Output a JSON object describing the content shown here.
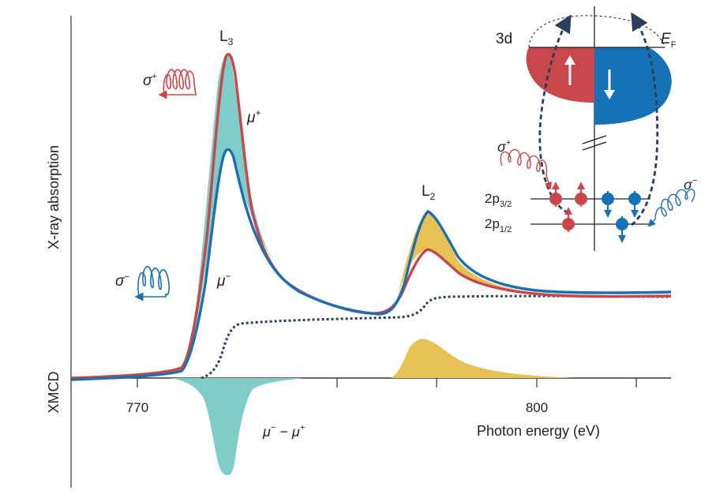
{
  "axes": {
    "ylabel": "X-ray absorption",
    "xmcd_label": "XMCD",
    "xlabel": "Photon energy (eV)",
    "xtick_labels": [
      "770",
      "800"
    ]
  },
  "peaks": {
    "l3": {
      "main": "L",
      "sub": "3"
    },
    "l2": {
      "main": "L",
      "sub": "2"
    }
  },
  "curve_labels": {
    "mu_plus": {
      "main": "μ",
      "sup": "+"
    },
    "mu_minus": {
      "main": "μ",
      "sup": "−"
    },
    "difference": {
      "a": "μ",
      "a_sup": "−",
      "op": " − ",
      "b": "μ",
      "b_sup": "+"
    }
  },
  "polarization": {
    "sigma_plus": {
      "main": "σ",
      "sup": "+"
    },
    "sigma_minus": {
      "main": "σ",
      "sup": "−"
    }
  },
  "inset": {
    "band_label": "3d",
    "fermi": {
      "main": "E",
      "sub": "F"
    },
    "core_levels": [
      {
        "main": "2p",
        "sub": "3/2"
      },
      {
        "main": "2p",
        "sub": "1/2"
      }
    ]
  },
  "colors": {
    "mu_plus": "#c8474b",
    "mu_minus": "#1f6fae",
    "fill_l3": "#7ecdc8",
    "fill_l2": "#e6c254",
    "edge_step": "#2c3e5c",
    "spin_up_band": "#c8474b",
    "spin_down_band": "#1672b5"
  }
}
